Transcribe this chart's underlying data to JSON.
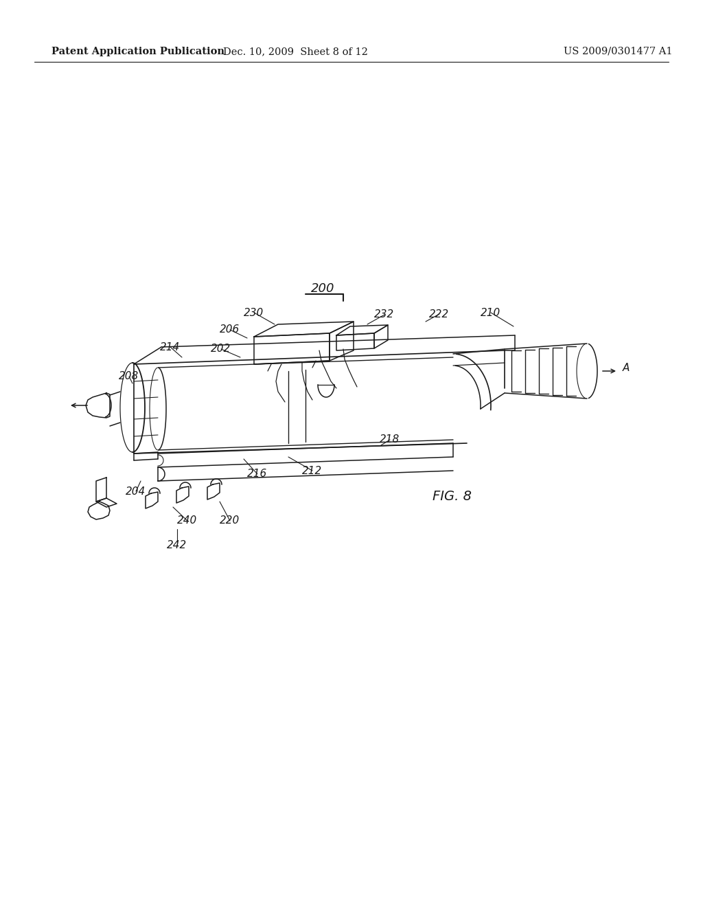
{
  "background_color": "#ffffff",
  "header_left": "Patent Application Publication",
  "header_mid": "Dec. 10, 2009  Sheet 8 of 12",
  "header_right": "US 2009/0301477 A1",
  "header_fontsize": 10.5,
  "line_color": "#1a1a1a",
  "lw": 1.1
}
